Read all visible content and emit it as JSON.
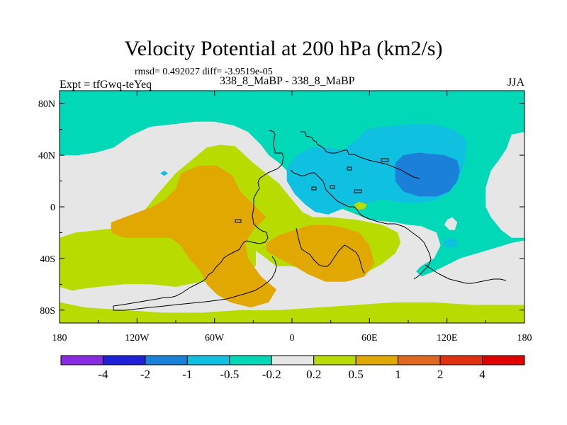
{
  "title": "Velocity Potential at 200 hPa (km2/s)",
  "stats": "rmsd= 0.492027 diff= -3.9519e-05",
  "expt": "Expt = tfGwq-teYeq",
  "cases": "338_8_MaBP - 338_8_MaBP",
  "season": "JJA",
  "chart_data": {
    "type": "filled-contour-map",
    "title": "Velocity Potential at 200 hPa (km2/s)",
    "xlim": [
      -180,
      180
    ],
    "ylim": [
      -90,
      90
    ],
    "x_ticks": [
      {
        "value": -180,
        "label": "180"
      },
      {
        "value": -120,
        "label": "120W"
      },
      {
        "value": -60,
        "label": "60W"
      },
      {
        "value": 0,
        "label": "0"
      },
      {
        "value": 60,
        "label": "60E"
      },
      {
        "value": 120,
        "label": "120E"
      },
      {
        "value": 180,
        "label": "180"
      }
    ],
    "y_ticks": [
      {
        "value": 80,
        "label": "80N"
      },
      {
        "value": 40,
        "label": "40N"
      },
      {
        "value": 0,
        "label": "0"
      },
      {
        "value": -40,
        "label": "40S"
      },
      {
        "value": -80,
        "label": "80S"
      }
    ],
    "levels": [
      "-4",
      "-2",
      "-1",
      "-0.5",
      "-0.2",
      "0.2",
      "0.5",
      "1",
      "2",
      "4"
    ],
    "colors": [
      "#8a2be2",
      "#2020d8",
      "#1a80d8",
      "#10c0e0",
      "#00d8b8",
      "#e6e6e6",
      "#b8dc00",
      "#e0a800",
      "#e06820",
      "#e03010",
      "#e00000"
    ],
    "background_color": "#e6e6e6",
    "regions": [
      {
        "name": "northern-teal-band",
        "level": "-0.5 to -0.2",
        "color": "#00d8b8",
        "points": [
          [
            -180,
            90
          ],
          [
            180,
            90
          ],
          [
            180,
            58
          ],
          [
            170,
            56
          ],
          [
            166,
            45
          ],
          [
            160,
            36
          ],
          [
            154,
            28
          ],
          [
            150,
            15
          ],
          [
            150,
            0
          ],
          [
            154,
            -8
          ],
          [
            162,
            -18
          ],
          [
            170,
            -24
          ],
          [
            180,
            -24
          ],
          [
            180,
            -30
          ],
          [
            174,
            -36
          ],
          [
            170,
            -42
          ],
          [
            168,
            -48
          ],
          [
            160,
            -58
          ],
          [
            150,
            -68
          ],
          [
            145,
            -72
          ],
          [
            132,
            -70
          ],
          [
            120,
            -62
          ],
          [
            105,
            -58
          ],
          [
            96,
            -50
          ],
          [
            100,
            -46
          ],
          [
            110,
            -40
          ],
          [
            115,
            -30
          ],
          [
            112,
            -20
          ],
          [
            100,
            -15
          ],
          [
            90,
            -14
          ],
          [
            80,
            -12
          ],
          [
            60,
            -10
          ],
          [
            50,
            -6
          ],
          [
            40,
            -2
          ],
          [
            30,
            2
          ],
          [
            16,
            12
          ],
          [
            8,
            20
          ],
          [
            -2,
            26
          ],
          [
            -10,
            34
          ],
          [
            -18,
            40
          ],
          [
            -24,
            48
          ],
          [
            -34,
            58
          ],
          [
            -45,
            63
          ],
          [
            -60,
            66
          ],
          [
            -75,
            66
          ],
          [
            -92,
            64
          ],
          [
            -110,
            62
          ],
          [
            -125,
            55
          ],
          [
            -138,
            46
          ],
          [
            -152,
            42
          ],
          [
            -166,
            40
          ],
          [
            -180,
            40
          ]
        ]
      },
      {
        "name": "north-africa-blue",
        "level": "-1 to -0.5",
        "color": "#10c0e0",
        "points": [
          [
            -4,
            30
          ],
          [
            4,
            40
          ],
          [
            15,
            46
          ],
          [
            28,
            46
          ],
          [
            40,
            44
          ],
          [
            50,
            52
          ],
          [
            58,
            60
          ],
          [
            70,
            62
          ],
          [
            90,
            64
          ],
          [
            110,
            64
          ],
          [
            125,
            60
          ],
          [
            135,
            52
          ],
          [
            134,
            36
          ],
          [
            128,
            18
          ],
          [
            120,
            10
          ],
          [
            110,
            5
          ],
          [
            100,
            3
          ],
          [
            90,
            3
          ],
          [
            80,
            4
          ],
          [
            70,
            6
          ],
          [
            62,
            4
          ],
          [
            52,
            0
          ],
          [
            44,
            2
          ],
          [
            38,
            -2
          ],
          [
            28,
            -6
          ],
          [
            18,
            -4
          ],
          [
            10,
            2
          ],
          [
            2,
            10
          ],
          [
            -4,
            20
          ]
        ]
      },
      {
        "name": "asia-core-blue",
        "level": "-2 to -1",
        "color": "#1a80d8",
        "points": [
          [
            80,
            34
          ],
          [
            86,
            40
          ],
          [
            98,
            42
          ],
          [
            118,
            40
          ],
          [
            128,
            36
          ],
          [
            130,
            28
          ],
          [
            128,
            20
          ],
          [
            122,
            12
          ],
          [
            112,
            8
          ],
          [
            98,
            8
          ],
          [
            86,
            12
          ],
          [
            80,
            20
          ]
        ]
      },
      {
        "name": "southeast-pacific-blue",
        "level": "-1 to -0.5",
        "color": "#10c0e0",
        "points": [
          [
            118,
            -26
          ],
          [
            123,
            -24
          ],
          [
            128,
            -26
          ],
          [
            128,
            -30
          ],
          [
            123,
            -32
          ],
          [
            118,
            -30
          ]
        ]
      },
      {
        "name": "pacific-small-blue",
        "level": "-1 to -0.5",
        "color": "#10c0e0",
        "points": [
          [
            -102,
            26
          ],
          [
            -99,
            28
          ],
          [
            -96,
            26
          ],
          [
            -99,
            24
          ]
        ]
      },
      {
        "name": "pacific-grey-hole",
        "level": "-0.2 to 0.2",
        "color": "#e6e6e6",
        "points": [
          [
            120,
            -10
          ],
          [
            124,
            -8
          ],
          [
            128,
            -12
          ],
          [
            126,
            -18
          ],
          [
            122,
            -18
          ],
          [
            118,
            -14
          ]
        ]
      },
      {
        "name": "southern-green",
        "level": "0.2 to 0.5",
        "color": "#b8dc00",
        "points": [
          [
            -180,
            -24
          ],
          [
            -168,
            -20
          ],
          [
            -150,
            -18
          ],
          [
            -132,
            -16
          ],
          [
            -120,
            -10
          ],
          [
            -112,
            0
          ],
          [
            -104,
            10
          ],
          [
            -90,
            26
          ],
          [
            -78,
            36
          ],
          [
            -66,
            46
          ],
          [
            -56,
            48
          ],
          [
            -44,
            47
          ],
          [
            -30,
            34
          ],
          [
            -20,
            26
          ],
          [
            -10,
            18
          ],
          [
            -2,
            8
          ],
          [
            8,
            -4
          ],
          [
            16,
            -8
          ],
          [
            30,
            -8
          ],
          [
            50,
            -10
          ],
          [
            70,
            -14
          ],
          [
            82,
            -20
          ],
          [
            84,
            -28
          ],
          [
            80,
            -36
          ],
          [
            70,
            -44
          ],
          [
            56,
            -52
          ],
          [
            40,
            -56
          ],
          [
            24,
            -54
          ],
          [
            12,
            -48
          ],
          [
            -2,
            -46
          ],
          [
            -12,
            -46
          ],
          [
            -20,
            -40
          ],
          [
            -28,
            -34
          ],
          [
            -28,
            -46
          ],
          [
            -40,
            -50
          ],
          [
            -50,
            -56
          ],
          [
            -70,
            -66
          ],
          [
            -92,
            -68
          ],
          [
            -110,
            -70
          ],
          [
            -125,
            -72
          ],
          [
            -140,
            -72
          ],
          [
            -152,
            -70
          ],
          [
            -166,
            -66
          ],
          [
            -180,
            -62
          ]
        ]
      },
      {
        "name": "southern-grey-band",
        "level": "-0.2 to 0.2",
        "color": "#e6e6e6",
        "points": [
          [
            -180,
            -68
          ],
          [
            -166,
            -64
          ],
          [
            -150,
            -62
          ],
          [
            -130,
            -60
          ],
          [
            -110,
            -60
          ],
          [
            -90,
            -62
          ],
          [
            -70,
            -58
          ],
          [
            -50,
            -60
          ],
          [
            -30,
            -66
          ],
          [
            -10,
            -64
          ],
          [
            10,
            -62
          ],
          [
            30,
            -60
          ],
          [
            50,
            -60
          ],
          [
            70,
            -60
          ],
          [
            90,
            -58
          ],
          [
            110,
            -50
          ],
          [
            130,
            -40
          ],
          [
            150,
            -34
          ],
          [
            170,
            -28
          ],
          [
            180,
            -26
          ],
          [
            180,
            -90
          ],
          [
            -180,
            -90
          ]
        ]
      },
      {
        "name": "southern-green-lower",
        "level": "0.2 to 0.5",
        "color": "#b8dc00",
        "points": [
          [
            -180,
            -74
          ],
          [
            -160,
            -78
          ],
          [
            -130,
            -80
          ],
          [
            -100,
            -82
          ],
          [
            -70,
            -82
          ],
          [
            -40,
            -80
          ],
          [
            -10,
            -80
          ],
          [
            20,
            -78
          ],
          [
            50,
            -76
          ],
          [
            80,
            -74
          ],
          [
            110,
            -74
          ],
          [
            140,
            -76
          ],
          [
            170,
            -76
          ],
          [
            180,
            -76
          ],
          [
            180,
            -90
          ],
          [
            -180,
            -90
          ]
        ]
      },
      {
        "name": "americas-orange",
        "level": "0.5 to 1",
        "color": "#e0a800",
        "points": [
          [
            -86,
            26
          ],
          [
            -72,
            32
          ],
          [
            -58,
            32
          ],
          [
            -46,
            24
          ],
          [
            -40,
            12
          ],
          [
            -30,
            2
          ],
          [
            -20,
            -8
          ],
          [
            -30,
            -18
          ],
          [
            -36,
            -28
          ],
          [
            -34,
            -40
          ],
          [
            -24,
            -54
          ],
          [
            -12,
            -64
          ],
          [
            -18,
            -74
          ],
          [
            -32,
            -78
          ],
          [
            -48,
            -74
          ],
          [
            -58,
            -68
          ],
          [
            -66,
            -60
          ],
          [
            -72,
            -48
          ],
          [
            -80,
            -40
          ],
          [
            -86,
            -30
          ],
          [
            -94,
            -24
          ],
          [
            -110,
            -24
          ],
          [
            -130,
            -24
          ],
          [
            -140,
            -20
          ],
          [
            -140,
            -12
          ],
          [
            -124,
            -6
          ],
          [
            -108,
            0
          ],
          [
            -98,
            6
          ],
          [
            -90,
            14
          ]
        ]
      },
      {
        "name": "africa-orange",
        "level": "0.5 to 1",
        "color": "#e0a800",
        "points": [
          [
            -20,
            -28
          ],
          [
            -10,
            -22
          ],
          [
            2,
            -18
          ],
          [
            14,
            -14
          ],
          [
            28,
            -14
          ],
          [
            40,
            -16
          ],
          [
            52,
            -20
          ],
          [
            60,
            -30
          ],
          [
            64,
            -44
          ],
          [
            56,
            -54
          ],
          [
            42,
            -58
          ],
          [
            26,
            -58
          ],
          [
            12,
            -52
          ],
          [
            2,
            -46
          ],
          [
            -10,
            -40
          ],
          [
            -20,
            -34
          ]
        ]
      },
      {
        "name": "east-africa-green",
        "level": "0.2 to 0.5",
        "color": "#b8dc00",
        "points": [
          [
            48,
            2
          ],
          [
            52,
            4
          ],
          [
            58,
            2
          ],
          [
            56,
            -2
          ],
          [
            50,
            -2
          ]
        ]
      }
    ],
    "colorbar": {
      "labels": [
        "-4",
        "-2",
        "-1",
        "-0.5",
        "-0.2",
        "0.2",
        "0.5",
        "1",
        "2",
        "4"
      ]
    }
  }
}
